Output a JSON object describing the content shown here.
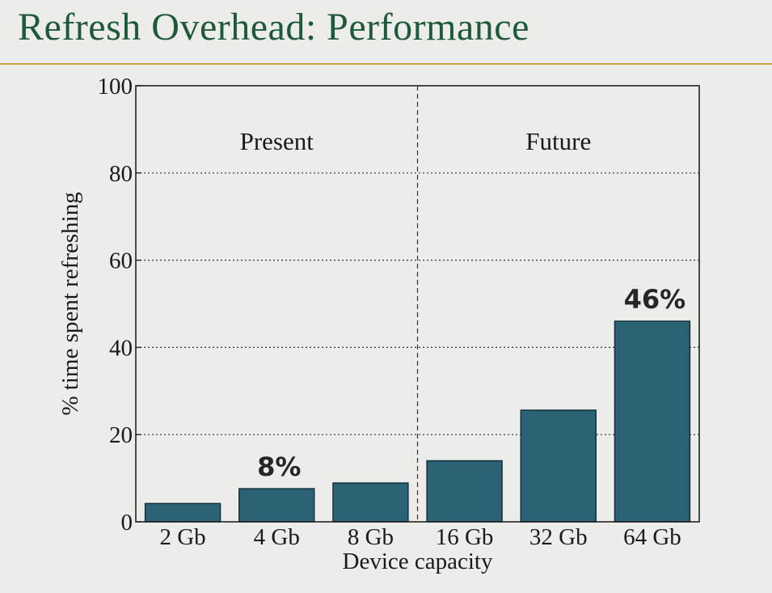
{
  "slide": {
    "title": "Refresh Overhead: Performance"
  },
  "colors": {
    "title": "#1e5a37",
    "rule": "#c8a63c",
    "bar": "#2b6374",
    "bar_edge": "#14323c",
    "background": "#ececea"
  },
  "chart_data": {
    "type": "bar",
    "categories": [
      "2 Gb",
      "4 Gb",
      "8 Gb",
      "16 Gb",
      "32 Gb",
      "64 Gb"
    ],
    "values": [
      4.2,
      7.6,
      8.9,
      14.0,
      25.6,
      46.0
    ],
    "xlabel": "Device capacity",
    "ylabel": "% time spent refreshing",
    "ylim": [
      0,
      100
    ],
    "yticks": [
      0,
      20,
      40,
      60,
      80,
      100
    ],
    "grid": "horizontal dotted",
    "divider_after_category": "8 Gb",
    "regions": [
      {
        "label": "Present",
        "categories": [
          "2 Gb",
          "4 Gb",
          "8 Gb"
        ]
      },
      {
        "label": "Future",
        "categories": [
          "16 Gb",
          "32 Gb",
          "64 Gb"
        ]
      }
    ],
    "annotations": [
      {
        "category": "4 Gb",
        "text": "8%"
      },
      {
        "category": "64 Gb",
        "text": "46%"
      }
    ]
  }
}
